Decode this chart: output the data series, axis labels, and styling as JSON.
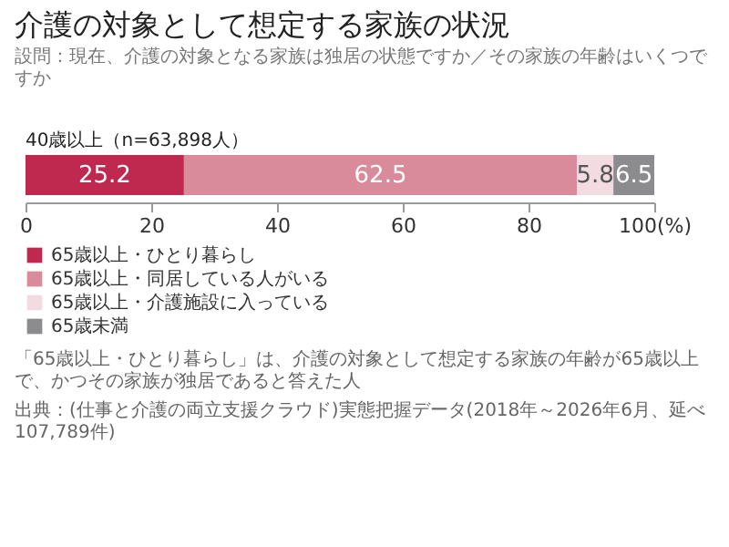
{
  "chart_data": {
    "type": "bar",
    "title": "介護の対象として想定する家族の状況",
    "subtitle": "設問：現在、介護の対象となる家族は独居の状態ですか／その家族の年齢はいくつですか",
    "orientation": "horizontal",
    "stacked": true,
    "data_labels": true,
    "grid": false,
    "legend": "bottom left",
    "categories": [
      "40歳以上（n=63,898人）"
    ],
    "series": [
      {
        "name": "65歳以上・ひとり暮らし",
        "color": "#c0294f",
        "values": [
          25.2
        ]
      },
      {
        "name": "65歳以上・同居している人がいる",
        "color": "#d98b9b",
        "values": [
          62.5
        ]
      },
      {
        "name": "65歳以上・介護施設に入っている",
        "color": "#f2dce1",
        "values": [
          5.8
        ]
      },
      {
        "name": "65歳未満",
        "color": "#8c8c8f",
        "values": [
          6.5
        ]
      }
    ],
    "xlim": [
      0,
      100
    ],
    "xticks": [
      0,
      20,
      40,
      60,
      80,
      {
        "value": 100,
        "label": "100(%)"
      }
    ],
    "annotations": [
      "「65歳以上・ひとり暮らし」は、介護の対象として想定する家族の年齢が65歳以上で、かつその家族が独居であると答えた人",
      "出典：(仕事と介護の両立支援クラウド)実態把握データ(2018年～2026年6月、延べ107,789件)"
    ]
  }
}
